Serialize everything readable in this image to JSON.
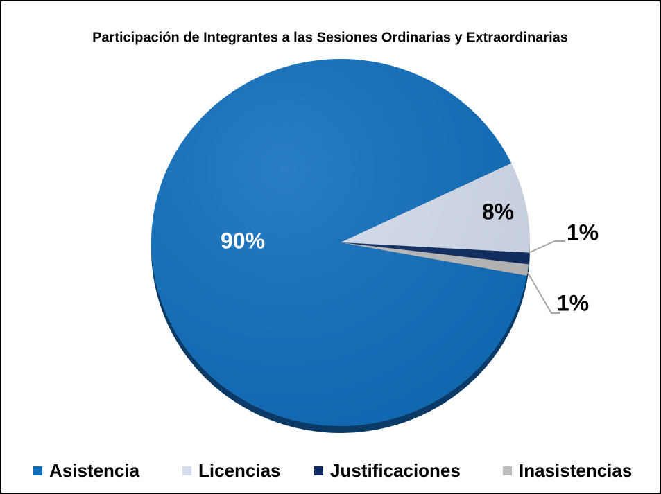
{
  "chart_data": {
    "type": "pie",
    "title": "Participación de Integrantes a las Sesiones Ordinarias y Extraordinarias",
    "categories": [
      "Asistencia",
      "Licencias",
      "Justificaciones",
      "Inasistencias"
    ],
    "values": [
      90,
      8,
      1,
      1
    ],
    "value_labels": [
      "90%",
      "8%",
      "1%",
      "1%"
    ],
    "colors": [
      "#106fbd",
      "#d5deee",
      "#0e2b62",
      "#bcbcbc"
    ],
    "legend": "bottom"
  }
}
